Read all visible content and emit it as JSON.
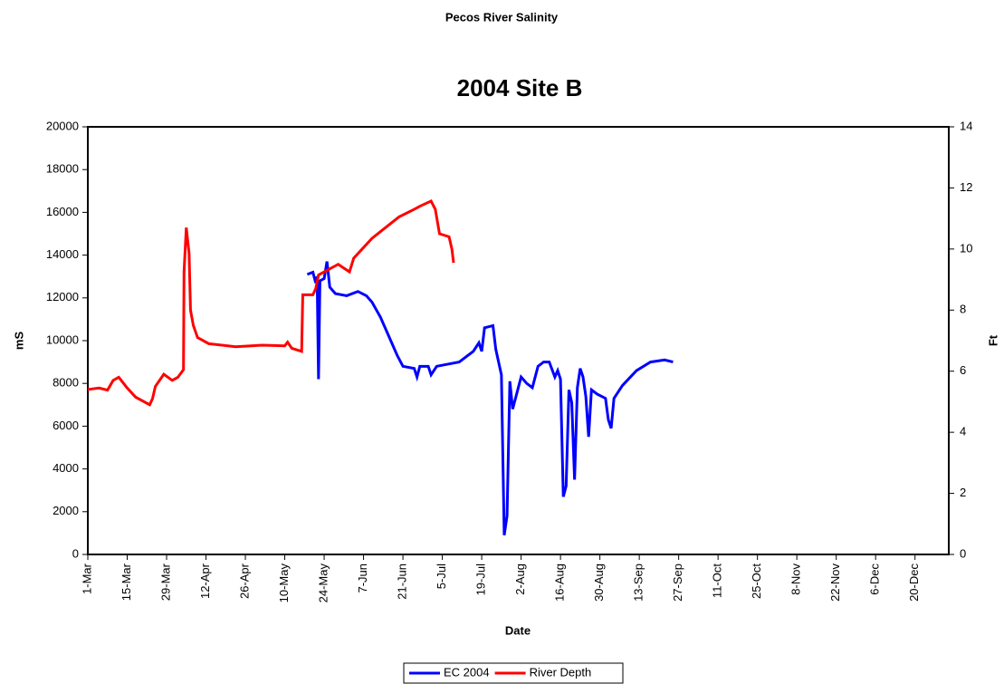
{
  "chart_data": {
    "type": "line",
    "title": "Pecos River Salinity",
    "subtitle": "2004 Site B",
    "x_label": "Date",
    "y_label": "mS",
    "y2_label": "Ft",
    "xlim": [
      0,
      306
    ],
    "xticks": [
      {
        "value": 0,
        "label": "1-Mar"
      },
      {
        "value": 14,
        "label": "15-Mar"
      },
      {
        "value": 28,
        "label": "29-Mar"
      },
      {
        "value": 42,
        "label": "12-Apr"
      },
      {
        "value": 56,
        "label": "26-Apr"
      },
      {
        "value": 70,
        "label": "10-May"
      },
      {
        "value": 84,
        "label": "24-May"
      },
      {
        "value": 98,
        "label": "7-Jun"
      },
      {
        "value": 112,
        "label": "21-Jun"
      },
      {
        "value": 126,
        "label": "5-Jul"
      },
      {
        "value": 140,
        "label": "19-Jul"
      },
      {
        "value": 154,
        "label": "2-Aug"
      },
      {
        "value": 168,
        "label": "16-Aug"
      },
      {
        "value": 182,
        "label": "30-Aug"
      },
      {
        "value": 196,
        "label": "13-Sep"
      },
      {
        "value": 210,
        "label": "27-Sep"
      },
      {
        "value": 224,
        "label": "11-Oct"
      },
      {
        "value": 238,
        "label": "25-Oct"
      },
      {
        "value": 252,
        "label": "8-Nov"
      },
      {
        "value": 266,
        "label": "22-Nov"
      },
      {
        "value": 280,
        "label": "6-Dec"
      },
      {
        "value": 294,
        "label": "20-Dec"
      }
    ],
    "ylim": [
      0,
      20000
    ],
    "yticks": [
      0,
      2000,
      4000,
      6000,
      8000,
      10000,
      12000,
      14000,
      16000,
      18000,
      20000
    ],
    "y2lim": [
      0,
      14
    ],
    "y2ticks": [
      0,
      2,
      4,
      6,
      8,
      10,
      12,
      14
    ],
    "series": [
      {
        "name": "EC 2004",
        "color": "#0000ff",
        "axis": "y",
        "x": [
          78,
          80,
          81,
          81.5,
          82,
          82.5,
          84,
          85,
          86,
          88,
          92,
          96,
          99,
          101,
          104,
          107,
          110,
          112,
          116,
          117,
          118,
          121,
          122,
          124,
          128,
          132,
          137,
          139,
          140,
          141,
          144,
          145,
          147,
          148,
          149,
          150,
          151,
          152,
          154,
          156,
          158,
          160,
          162,
          164,
          166,
          167,
          168,
          169,
          170,
          171,
          172,
          173,
          174,
          175,
          176,
          177,
          178,
          179,
          181,
          184,
          185,
          186,
          187,
          190,
          195,
          200,
          205,
          208
        ],
        "values": [
          13100,
          13200,
          12700,
          13000,
          8200,
          12800,
          12900,
          13700,
          12500,
          12200,
          12100,
          12300,
          12100,
          11800,
          11100,
          10200,
          9300,
          8800,
          8700,
          8300,
          8800,
          8800,
          8400,
          8800,
          8900,
          9000,
          9500,
          9900,
          9500,
          10600,
          10700,
          9600,
          8400,
          900,
          1800,
          8100,
          6800,
          7300,
          8300,
          8000,
          7800,
          8800,
          9000,
          9000,
          8300,
          8600,
          8200,
          2700,
          3200,
          7700,
          7100,
          3500,
          7800,
          8700,
          8300,
          7400,
          5500,
          7700,
          7500,
          7300,
          6300,
          5900,
          7300,
          7900,
          8600,
          9000,
          9100,
          9000
        ]
      },
      {
        "name": "River Depth",
        "color": "#ff0000",
        "axis": "y2",
        "x": [
          0,
          4,
          7,
          9,
          11,
          14,
          17,
          22,
          23,
          24,
          27,
          30,
          32,
          34,
          34.2,
          35,
          36,
          36.5,
          37.5,
          39,
          43,
          52.5,
          62,
          70,
          71,
          72.5,
          76,
          76.4,
          80,
          81,
          82,
          85,
          89,
          93,
          94.5,
          101,
          110.6,
          116,
          118,
          122,
          123.5,
          125,
          128.4,
          129.4,
          130
        ],
        "values": [
          5.4,
          5.45,
          5.38,
          5.7,
          5.8,
          5.45,
          5.15,
          4.9,
          5.1,
          5.5,
          5.9,
          5.7,
          5.8,
          6.05,
          9.25,
          10.7,
          9.85,
          8.0,
          7.5,
          7.1,
          6.9,
          6.8,
          6.85,
          6.83,
          6.95,
          6.75,
          6.65,
          8.5,
          8.5,
          8.7,
          9.15,
          9.3,
          9.5,
          9.25,
          9.7,
          10.35,
          11.05,
          11.3,
          11.4,
          11.57,
          11.3,
          10.5,
          10.4,
          10.0,
          9.55
        ]
      }
    ],
    "legend": "bottom"
  }
}
